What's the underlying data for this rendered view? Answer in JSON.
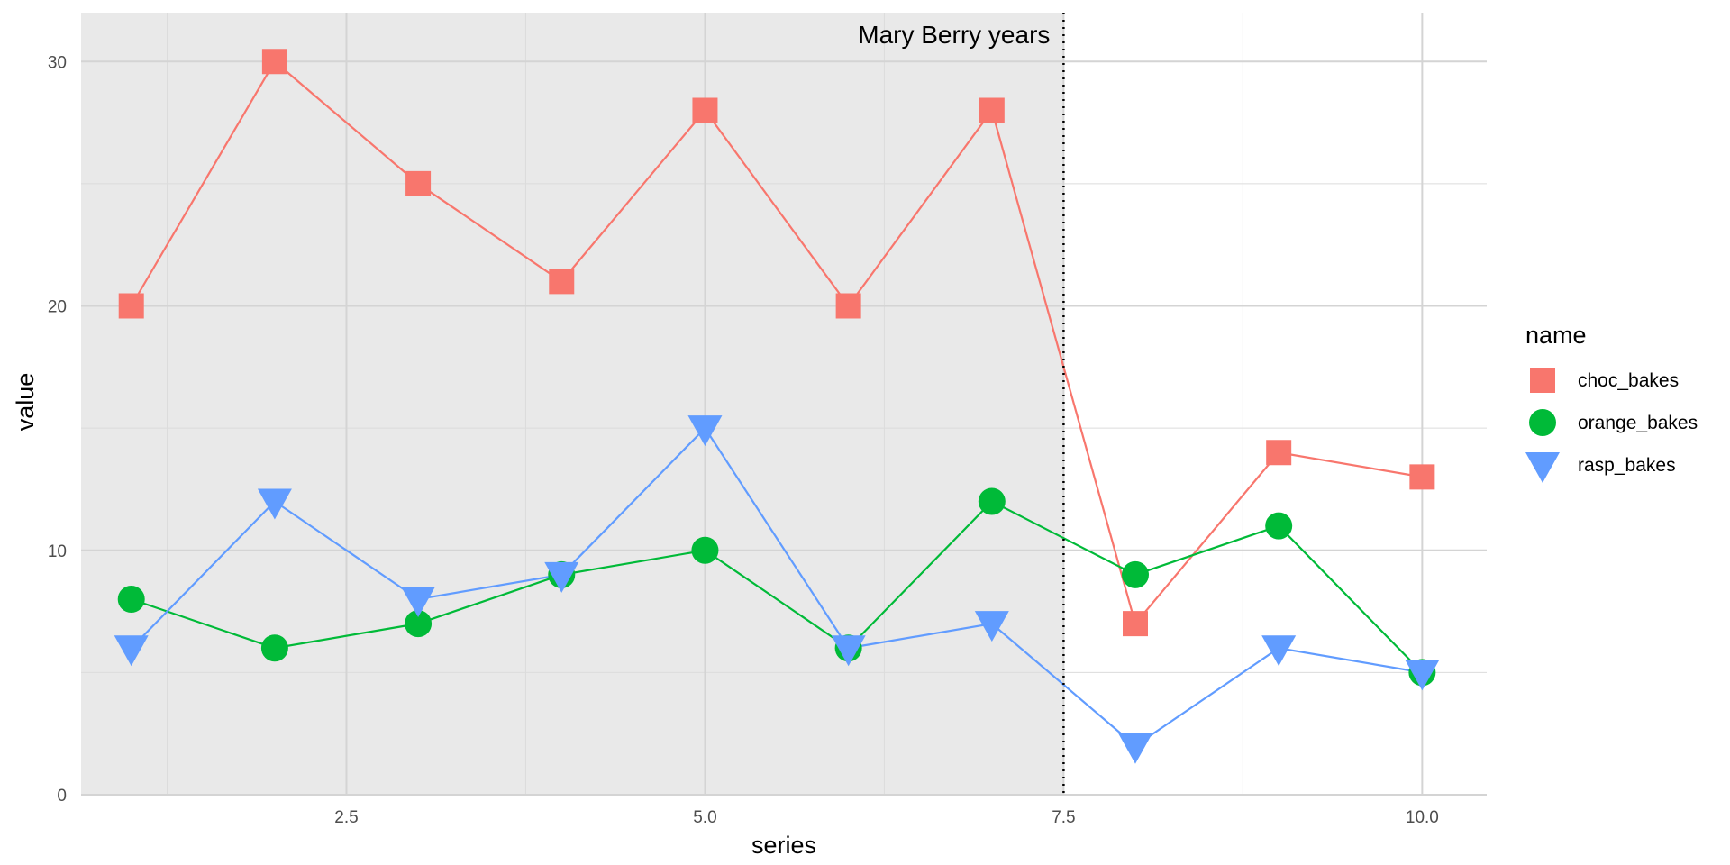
{
  "chart_data": {
    "type": "line",
    "title": "",
    "xlabel": "series",
    "ylabel": "value",
    "xlim": [
      0.65,
      10.45
    ],
    "ylim": [
      0,
      32
    ],
    "x_ticks": [
      2.5,
      5.0,
      7.5,
      10.0
    ],
    "x_tick_labels": [
      "2.5",
      "5.0",
      "7.5",
      "10.0"
    ],
    "y_ticks": [
      0,
      10,
      20,
      30
    ],
    "y_tick_labels": [
      "0",
      "10",
      "20",
      "30"
    ],
    "grid": true,
    "legend": {
      "title": "name",
      "position": "right"
    },
    "shaded_region": {
      "x_end": 7.5,
      "color": "#e9e9e9"
    },
    "vline": {
      "x": 7.5,
      "style": "dotted",
      "label": "Mary Berry years"
    },
    "x": [
      1,
      2,
      3,
      4,
      5,
      6,
      7,
      8,
      9,
      10
    ],
    "series": [
      {
        "name": "choc_bakes",
        "color": "#F8766D",
        "marker": "square",
        "values": [
          20,
          30,
          25,
          21,
          28,
          20,
          28,
          7,
          14,
          13
        ]
      },
      {
        "name": "orange_bakes",
        "color": "#00BA38",
        "marker": "circle",
        "values": [
          8,
          6,
          7,
          9,
          10,
          6,
          12,
          9,
          11,
          5
        ]
      },
      {
        "name": "rasp_bakes",
        "color": "#619CFF",
        "marker": "triangle-down",
        "values": [
          6,
          12,
          8,
          9,
          15,
          6,
          7,
          2,
          6,
          5
        ]
      }
    ]
  }
}
